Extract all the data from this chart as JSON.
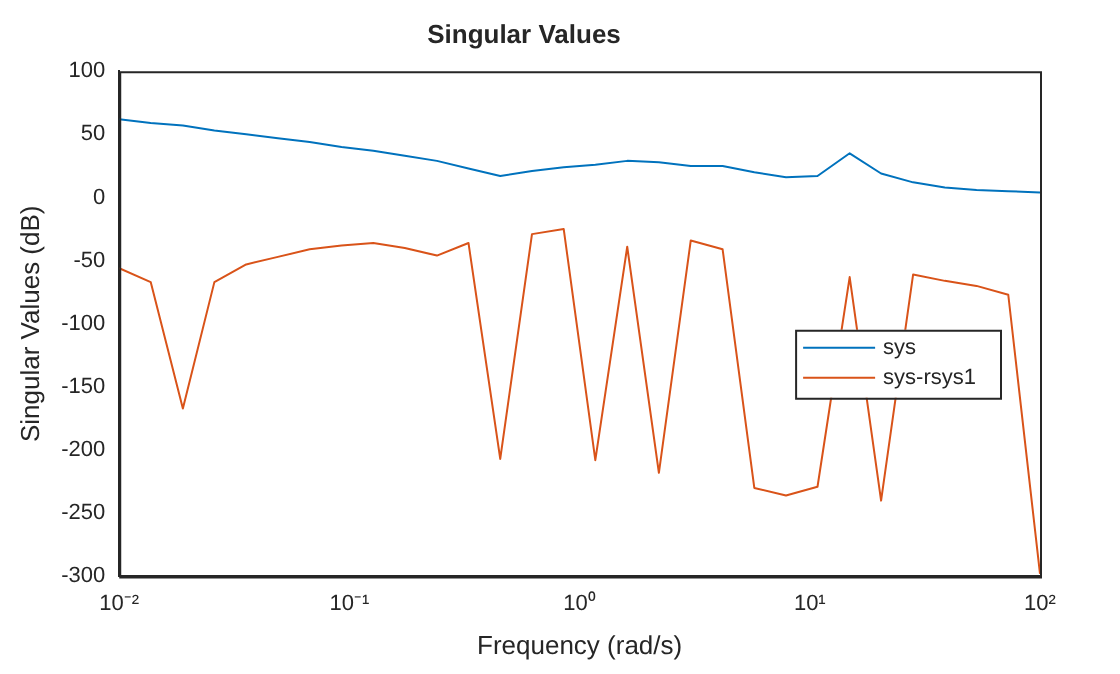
{
  "chart_data": {
    "type": "line",
    "title": "Singular Values",
    "xlabel": "Frequency (rad/s)",
    "ylabel": "Singular Values (dB)",
    "x": [
      0.01,
      0.0137,
      0.0189,
      0.0259,
      0.0356,
      0.0489,
      0.0672,
      0.0924,
      0.127,
      0.174,
      0.24,
      0.329,
      0.452,
      0.621,
      0.853,
      1.17,
      1.61,
      2.21,
      3.04,
      4.18,
      5.74,
      7.88,
      10.8,
      14.9,
      20.4,
      28.1,
      38.6,
      53.0,
      72.8,
      100
    ],
    "series": [
      {
        "name": "sys",
        "color": "#0072bd",
        "values": [
          62,
          59,
          57,
          53,
          50,
          47,
          44,
          40,
          37,
          33,
          29,
          23,
          17,
          21,
          24,
          26,
          29,
          28,
          25,
          25,
          20,
          16,
          17,
          35,
          19,
          12,
          8,
          6,
          5,
          4
        ]
      },
      {
        "name": "sys-rsys1",
        "color": "#d95319",
        "values": [
          -56,
          -67,
          -167,
          -67,
          -53,
          -47,
          -41,
          -38,
          -36,
          -40,
          -46,
          -36,
          -207,
          -29,
          -25,
          -208,
          -39,
          -218,
          -34,
          -41,
          -230,
          -236,
          -229,
          -63,
          -240,
          -61,
          -66,
          -70,
          -77,
          -298
        ]
      }
    ],
    "log": "x",
    "xlim": [
      0.01,
      100
    ],
    "xticks": [
      {
        "value": 0.01,
        "label": "10⁻²"
      },
      {
        "value": 0.1,
        "label": "10⁻¹"
      },
      {
        "value": 1,
        "label": "10⁰"
      },
      {
        "value": 10,
        "label": "10¹"
      },
      {
        "value": 100,
        "label": "10²"
      }
    ],
    "ylim": [
      -300,
      100
    ],
    "yticks": [
      -300,
      -250,
      -200,
      -150,
      -100,
      -50,
      0,
      50,
      100
    ],
    "grid": false,
    "legend": "right",
    "marker": "none",
    "line_style": "solid"
  }
}
